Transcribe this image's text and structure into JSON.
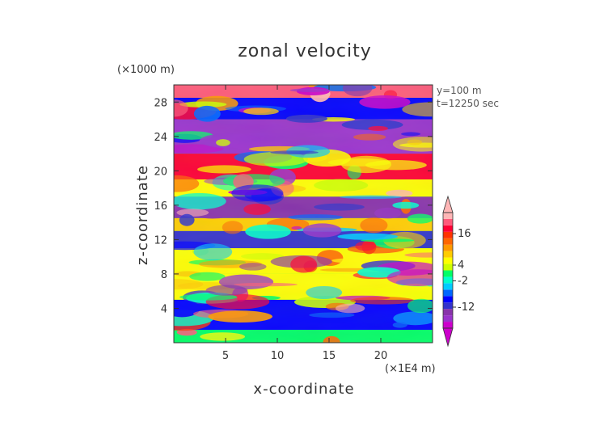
{
  "chart_data": {
    "type": "heatmap",
    "title": "zonal velocity",
    "xlabel": "x-coordinate",
    "ylabel": "z-coordinate",
    "x_unit": "(×1E4 m)",
    "y_unit": "(×1000 m)",
    "annotations": [
      "y=100 m",
      "t=12250 sec"
    ],
    "xlim": [
      0,
      25
    ],
    "ylim": [
      0,
      30
    ],
    "x_ticks": [
      5,
      10,
      15,
      20
    ],
    "y_ticks": [
      4,
      8,
      12,
      16,
      20,
      24,
      28
    ],
    "colorbar": {
      "tick_labels": [
        "16",
        "4",
        "-2",
        "-12"
      ],
      "tick_values": [
        16,
        4,
        -2,
        -12
      ],
      "range": [
        -20,
        24
      ],
      "colors": [
        "#cc00cc",
        "#9933cc",
        "#8833aa",
        "#3333cc",
        "#0000ff",
        "#0066ff",
        "#00ccff",
        "#00ffcc",
        "#00ff66",
        "#ccff00",
        "#ffff00",
        "#ffcc00",
        "#ff9900",
        "#ff6600",
        "#ff3300",
        "#ff0033",
        "#ff5a7a",
        "#ffb6b6"
      ]
    },
    "bands": [
      {
        "z": [
          0,
          1.5
        ],
        "value": 0
      },
      {
        "z": [
          1.5,
          5
        ],
        "value": -9
      },
      {
        "z": [
          5,
          8
        ],
        "value": 5
      },
      {
        "z": [
          8,
          11
        ],
        "value": 6
      },
      {
        "z": [
          11,
          13
        ],
        "value": -12
      },
      {
        "z": [
          13,
          14.5
        ],
        "value": 8
      },
      {
        "z": [
          14.5,
          17
        ],
        "value": -14
      },
      {
        "z": [
          17,
          19
        ],
        "value": 6
      },
      {
        "z": [
          19,
          22
        ],
        "value": 18
      },
      {
        "z": [
          22,
          26
        ],
        "value": -16
      },
      {
        "z": [
          26,
          28.5
        ],
        "value": -10
      },
      {
        "z": [
          28.5,
          30
        ],
        "value": 20
      }
    ]
  }
}
